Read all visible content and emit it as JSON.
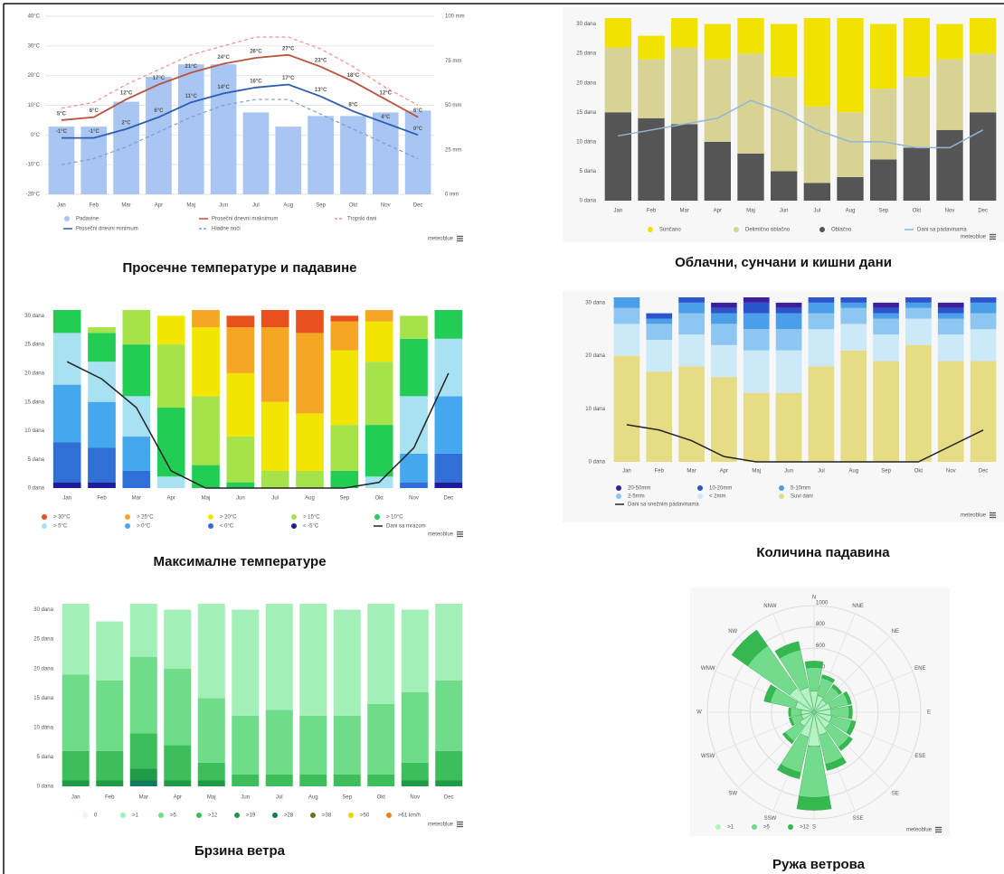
{
  "credit": "meteoblue",
  "chart_data": [
    {
      "type": "combo",
      "title": "Просечне температуре и падавине",
      "categories": [
        "Jan",
        "Feb",
        "Mar",
        "Apr",
        "Maj",
        "Jun",
        "Jul",
        "Aug",
        "Sep",
        "Okt",
        "Nov",
        "Dec"
      ],
      "ylim": [
        -20,
        40
      ],
      "yticks": [
        {
          "value": 40,
          "label": "40°C"
        },
        {
          "value": 30,
          "label": "30°C"
        },
        {
          "value": 20,
          "label": "20°C"
        },
        {
          "value": 10,
          "label": "10°C"
        },
        {
          "value": 0,
          "label": "0°C"
        },
        {
          "value": -10,
          "label": "-10°C"
        },
        {
          "value": -20,
          "label": "-20°C"
        }
      ],
      "y2lim": [
        0,
        100
      ],
      "y2ticks": [
        {
          "value": 100,
          "label": "100 mm"
        },
        {
          "value": 75,
          "label": "75 mm"
        },
        {
          "value": 50,
          "label": "50 mm"
        },
        {
          "value": 25,
          "label": "25 mm"
        },
        {
          "value": 0,
          "label": "0 mm"
        }
      ],
      "grid": true,
      "series": [
        {
          "name": "Padavine",
          "type": "bar",
          "axis": "y2",
          "color": "#a9c5f2",
          "values": [
            38,
            38,
            52,
            66,
            73,
            73,
            46,
            38,
            44,
            44,
            46,
            47
          ]
        },
        {
          "name": "Prosečni dnevni maksimum",
          "type": "line",
          "color": "#b9533f",
          "values": [
            5,
            6,
            12,
            17,
            21,
            24,
            26,
            27,
            23,
            18,
            12,
            6
          ],
          "value_labels": [
            "5°C",
            "6°C",
            "12°C",
            "17°C",
            "21°C",
            "24°C",
            "26°C",
            "27°C",
            "23°C",
            "18°C",
            "12°C",
            "6°C"
          ]
        },
        {
          "name": "Tropski dani",
          "type": "line",
          "dash": true,
          "color": "#f09090",
          "values": [
            9,
            11,
            17,
            22,
            27,
            30,
            33,
            33,
            29,
            23,
            16,
            10
          ]
        },
        {
          "name": "Prosečni dnevni minimum",
          "type": "line",
          "color": "#2b5db3",
          "values": [
            -1,
            -1,
            2,
            6,
            11,
            14,
            16,
            17,
            13,
            8,
            4,
            0
          ],
          "value_labels": [
            "-1°C",
            "-1°C",
            "2°C",
            "6°C",
            "11°C",
            "14°C",
            "16°C",
            "17°C",
            "13°C",
            "8°C",
            "4°C",
            "0°C"
          ]
        },
        {
          "name": "Hladne noći",
          "type": "line",
          "dash": true,
          "color": "#7f9bd6",
          "values": [
            -10,
            -8,
            -4,
            1,
            6,
            10,
            12,
            12,
            7,
            2,
            -3,
            -8
          ]
        }
      ]
    },
    {
      "type": "stacked-bar",
      "title": "Облачни, сунчани и кишни дани",
      "categories": [
        "Jan",
        "Feb",
        "Mar",
        "Apr",
        "Maj",
        "Jun",
        "Jul",
        "Aug",
        "Sep",
        "Okt",
        "Nov",
        "Dec"
      ],
      "ylim": [
        0,
        31
      ],
      "yticks": [
        {
          "value": 30,
          "label": "30 dana"
        },
        {
          "value": 25,
          "label": "25 dana"
        },
        {
          "value": 20,
          "label": "20 dana"
        },
        {
          "value": 15,
          "label": "15 dana"
        },
        {
          "value": 10,
          "label": "10 dana"
        },
        {
          "value": 5,
          "label": "5 dana"
        },
        {
          "value": 0,
          "label": "0 dana"
        }
      ],
      "grid": false,
      "series": [
        {
          "name": "Sunčano",
          "color": "#f2e200",
          "values": [
            5,
            4,
            5,
            6,
            6,
            9,
            15,
            16,
            11,
            10,
            6,
            6
          ]
        },
        {
          "name": "Delimično oblačno",
          "color": "#d8d394",
          "values": [
            11,
            10,
            13,
            14,
            17,
            16,
            13,
            11,
            12,
            12,
            12,
            10
          ]
        },
        {
          "name": "Oblačno",
          "color": "#555555",
          "values": [
            15,
            14,
            13,
            10,
            8,
            5,
            3,
            4,
            7,
            9,
            12,
            15
          ]
        }
      ],
      "lines": [
        {
          "name": "Dani sa padavinama",
          "color": "#8fb6d8",
          "values": [
            11,
            12,
            13,
            14,
            17,
            15,
            12,
            10,
            10,
            9,
            9,
            12
          ]
        }
      ]
    },
    {
      "type": "stacked-bar",
      "title": "Максималне температуре",
      "categories": [
        "Jan",
        "Feb",
        "Mar",
        "Apr",
        "Maj",
        "Jun",
        "Jul",
        "Aug",
        "Sep",
        "Okt",
        "Nov",
        "Dec"
      ],
      "ylim": [
        0,
        31
      ],
      "yticks": [
        {
          "value": 30,
          "label": "30 dana"
        },
        {
          "value": 25,
          "label": "25 dana"
        },
        {
          "value": 20,
          "label": "20 dana"
        },
        {
          "value": 15,
          "label": "15 dana"
        },
        {
          "value": 10,
          "label": "10 dana"
        },
        {
          "value": 5,
          "label": "5 dana"
        },
        {
          "value": 0,
          "label": "0 dana"
        }
      ],
      "grid": false,
      "series": [
        {
          "name": "> 30°C",
          "color": "#e8501e",
          "values": [
            0,
            0,
            0,
            0,
            0,
            2,
            3,
            4,
            1,
            0,
            0,
            0
          ]
        },
        {
          "name": "> 25°C",
          "color": "#f5a623",
          "values": [
            0,
            0,
            0,
            0,
            3,
            8,
            13,
            14,
            5,
            2,
            0,
            0
          ]
        },
        {
          "name": "> 20°C",
          "color": "#f2e500",
          "values": [
            0,
            0,
            0,
            5,
            12,
            11,
            12,
            10,
            13,
            7,
            0,
            0
          ]
        },
        {
          "name": "> 15°C",
          "color": "#a6e34a",
          "values": [
            0,
            1,
            6,
            11,
            12,
            8,
            3,
            3,
            8,
            11,
            4,
            0
          ]
        },
        {
          "name": "> 10°C",
          "color": "#22cc55",
          "values": [
            4,
            5,
            9,
            12,
            4,
            1,
            0,
            0,
            3,
            9,
            10,
            5
          ]
        },
        {
          "name": "> 5°C",
          "color": "#a8e2f2",
          "values": [
            9,
            7,
            7,
            2,
            0,
            0,
            0,
            0,
            0,
            2,
            10,
            10
          ]
        },
        {
          "name": "> 0°C",
          "color": "#45a8ee",
          "values": [
            10,
            8,
            6,
            0,
            0,
            0,
            0,
            0,
            0,
            0,
            5,
            10
          ]
        },
        {
          "name": "< 0°C",
          "color": "#2f6fd6",
          "values": [
            7,
            6,
            3,
            0,
            0,
            0,
            0,
            0,
            0,
            0,
            1,
            5
          ]
        },
        {
          "name": "< -5°C",
          "color": "#1c1c9c",
          "values": [
            1,
            1,
            0,
            0,
            0,
            0,
            0,
            0,
            0,
            0,
            0,
            1
          ]
        }
      ],
      "lines": [
        {
          "name": "Dani sa mrazom",
          "color": "#222222",
          "values": [
            22,
            19,
            14,
            3,
            0,
            0,
            0,
            0,
            0,
            1,
            7,
            20
          ]
        }
      ]
    },
    {
      "type": "stacked-bar",
      "title": "Количина падавина",
      "categories": [
        "Jan",
        "Feb",
        "Mar",
        "Apr",
        "Maj",
        "Jun",
        "Jul",
        "Aug",
        "Sep",
        "Okt",
        "Nov",
        "Dec"
      ],
      "ylim": [
        0,
        31
      ],
      "yticks": [
        {
          "value": 30,
          "label": "30 dana"
        },
        {
          "value": 20,
          "label": "20 dana"
        },
        {
          "value": 10,
          "label": "10 dana"
        },
        {
          "value": 0,
          "label": "0 dana"
        }
      ],
      "grid": false,
      "series": [
        {
          "name": "20-50mm",
          "color": "#3b1f9e",
          "values": [
            0,
            0,
            0,
            1,
            1,
            1,
            0,
            0,
            1,
            0,
            1,
            0
          ]
        },
        {
          "name": "10-20mm",
          "color": "#2b55cc",
          "values": [
            0,
            1,
            1,
            1,
            2,
            1,
            1,
            1,
            1,
            1,
            1,
            1
          ]
        },
        {
          "name": "5-10mm",
          "color": "#4a9fe8",
          "values": [
            2,
            1,
            2,
            2,
            3,
            3,
            2,
            1,
            1,
            1,
            1,
            2
          ]
        },
        {
          "name": "2-5mm",
          "color": "#8dc6f0",
          "values": [
            3,
            3,
            4,
            4,
            4,
            4,
            3,
            3,
            3,
            2,
            3,
            3
          ]
        },
        {
          "name": "< 2mm",
          "color": "#cbe9f8",
          "values": [
            6,
            6,
            6,
            6,
            8,
            8,
            7,
            5,
            5,
            5,
            5,
            6
          ]
        },
        {
          "name": "Suvi dani",
          "color": "#e5dc84",
          "values": [
            20,
            17,
            18,
            16,
            13,
            13,
            18,
            21,
            19,
            22,
            19,
            19
          ]
        }
      ],
      "lines": [
        {
          "name": "Dani sa snežnim padavinama",
          "color": "#222222",
          "values": [
            7,
            6,
            4,
            1,
            0,
            0,
            0,
            0,
            0,
            0,
            3,
            6
          ]
        }
      ]
    },
    {
      "type": "stacked-bar",
      "title": "Брзина ветра",
      "categories": [
        "Jan",
        "Feb",
        "Mar",
        "Apr",
        "Maj",
        "Jun",
        "Jul",
        "Aug",
        "Sep",
        "Okt",
        "Nov",
        "Dec"
      ],
      "ylim": [
        0,
        31
      ],
      "yticks": [
        {
          "value": 30,
          "label": "30 dana"
        },
        {
          "value": 25,
          "label": "25 dana"
        },
        {
          "value": 20,
          "label": "20 dana"
        },
        {
          "value": 15,
          "label": "15 dana"
        },
        {
          "value": 10,
          "label": "10 dana"
        },
        {
          "value": 5,
          "label": "5 dana"
        },
        {
          "value": 0,
          "label": "0 dana"
        }
      ],
      "grid": false,
      "series": [
        {
          "name": "0",
          "color": "#e6fbe6",
          "values": [
            0,
            0,
            0,
            0,
            0,
            0,
            0,
            0,
            0,
            0,
            0,
            0
          ]
        },
        {
          "name": ">1",
          "color": "#a3efb8",
          "values": [
            12,
            10,
            9,
            10,
            16,
            18,
            18,
            19,
            18,
            17,
            14,
            13
          ]
        },
        {
          "name": ">5",
          "color": "#6fdc8a",
          "values": [
            13,
            12,
            13,
            13,
            11,
            10,
            11,
            10,
            10,
            12,
            12,
            12
          ]
        },
        {
          "name": ">12",
          "color": "#3cbf5a",
          "values": [
            5,
            5,
            6,
            6,
            3,
            2,
            2,
            2,
            2,
            2,
            3,
            5
          ]
        },
        {
          "name": ">19",
          "color": "#1f9a45",
          "values": [
            1,
            1,
            2,
            1,
            1,
            0,
            0,
            0,
            0,
            0,
            1,
            1
          ]
        },
        {
          "name": ">28",
          "color": "#117a5c",
          "values": [
            0,
            0,
            1,
            0,
            0,
            0,
            0,
            0,
            0,
            0,
            0,
            0
          ]
        },
        {
          "name": ">38",
          "color": "#5a7d1f",
          "values": [
            0,
            0,
            0,
            0,
            0,
            0,
            0,
            0,
            0,
            0,
            0,
            0
          ]
        },
        {
          "name": ">50",
          "color": "#e6d600",
          "values": [
            0,
            0,
            0,
            0,
            0,
            0,
            0,
            0,
            0,
            0,
            0,
            0
          ]
        },
        {
          "name": ">61 km/h",
          "color": "#e8801e",
          "values": [
            0,
            0,
            0,
            0,
            0,
            0,
            0,
            0,
            0,
            0,
            0,
            0
          ]
        }
      ],
      "lines": []
    },
    {
      "type": "wind-rose",
      "title": "Ружа ветрова",
      "directions": [
        "N",
        "NNE",
        "NE",
        "ENE",
        "E",
        "ESE",
        "SE",
        "SSE",
        "S",
        "SSW",
        "SW",
        "WSW",
        "W",
        "WNW",
        "NW",
        "NNW"
      ],
      "rlim": [
        0,
        1000
      ],
      "rticks": [
        200,
        400,
        600,
        800,
        1000
      ],
      "series": [
        {
          "name": ">1",
          "color": "#b5f2c4",
          "values": [
            200,
            160,
            140,
            160,
            160,
            170,
            180,
            220,
            320,
            240,
            160,
            120,
            120,
            180,
            280,
            240
          ]
        },
        {
          "name": ">5",
          "color": "#72dc8c",
          "values": [
            220,
            170,
            150,
            170,
            170,
            190,
            220,
            280,
            480,
            340,
            170,
            100,
            100,
            240,
            480,
            360
          ]
        },
        {
          "name": ">12",
          "color": "#35b84f",
          "values": [
            60,
            30,
            30,
            30,
            30,
            40,
            40,
            60,
            120,
            60,
            30,
            20,
            20,
            60,
            180,
            80
          ]
        }
      ]
    }
  ]
}
